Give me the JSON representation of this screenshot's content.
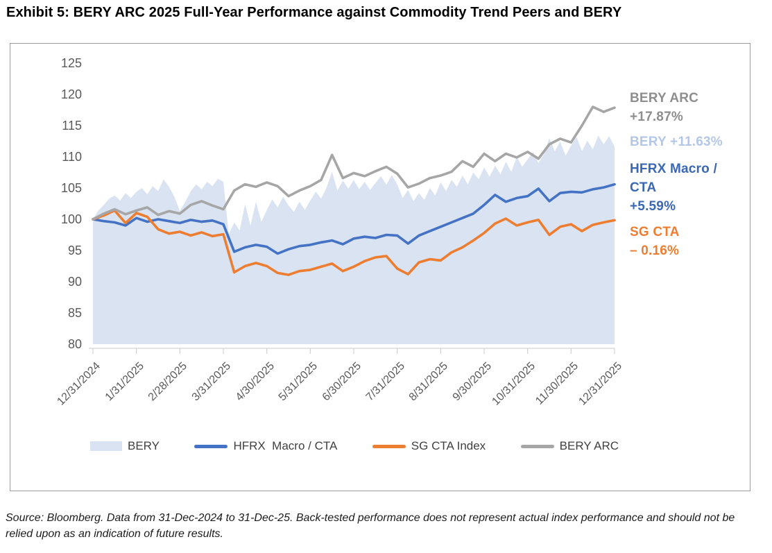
{
  "page": {
    "title": "Exhibit 5: BERY ARC 2025 Full-Year Performance against Commodity Trend Peers and BERY",
    "footnote": "Source: Bloomberg. Data from 31-Dec-2024 to 31-Dec-25. Back-tested performance does not represent actual index performance and should not be relied upon as an indication of future results."
  },
  "colors": {
    "bery_area": "#dae3f1",
    "hfrx_blue": "#4472c4",
    "sg_orange": "#ed7d31",
    "arc_gray": "#a6a6a6",
    "bery_annotation_blue": "#b4c7e7",
    "hfrx_annotation_blue": "#3a68b5",
    "arc_annotation_gray": "#8e8e8e",
    "axis_text": "#595959",
    "legend_text": "#404040"
  },
  "chart_data": {
    "type": "line",
    "title": "",
    "xlabel": "",
    "ylabel": "",
    "x_unit": "months since 12/31/2024",
    "x_range": [
      0,
      12
    ],
    "ylim": [
      80,
      125
    ],
    "grid": false,
    "legend_position": "bottom",
    "y_ticks": [
      125,
      120,
      115,
      110,
      105,
      100,
      95,
      90,
      85,
      80
    ],
    "x_tick_labels": [
      "12/31/2024",
      "1/31/2025",
      "2/28/2025",
      "3/31/2025",
      "4/30/2025",
      "5/31/2025",
      "6/30/2025",
      "7/31/2025",
      "8/31/2025",
      "9/30/2025",
      "10/31/2025",
      "11/30/2025",
      "12/31/2025"
    ],
    "series": [
      {
        "name": "BERY",
        "type": "area",
        "color": "#dae3f1",
        "final_return_pct": 11.63,
        "x_step": 0.125,
        "values": [
          100,
          101.4,
          102.3,
          103.3,
          103.8,
          103.0,
          104.2,
          103.4,
          104.4,
          105.0,
          104.0,
          105.3,
          104.5,
          106.4,
          105.2,
          103.6,
          101.3,
          102.8,
          104.5,
          105.6,
          104.8,
          106.0,
          105.3,
          106.5,
          106.0,
          97.6,
          99.5,
          98.2,
          102.4,
          99.0,
          102.8,
          99.6,
          101.5,
          103.2,
          101.9,
          103.6,
          102.2,
          101.2,
          102.8,
          101.5,
          103.0,
          104.4,
          103.3,
          105.1,
          107.6,
          104.6,
          106.2,
          104.9,
          106.3,
          104.8,
          106.0,
          104.7,
          105.8,
          106.9,
          105.5,
          107.1,
          105.6,
          103.4,
          104.7,
          102.9,
          104.2,
          103.1,
          105.0,
          103.8,
          105.9,
          104.5,
          106.3,
          105.2,
          107.0,
          105.6,
          107.5,
          106.4,
          108.3,
          106.8,
          108.6,
          107.2,
          109.2,
          107.6,
          110.0,
          108.4,
          109.6,
          110.8,
          109.0,
          110.4,
          113.0,
          110.9,
          112.4,
          110.2,
          111.8,
          113.2,
          110.9,
          112.6,
          111.2,
          113.4,
          112.0,
          113.3,
          111.63
        ]
      },
      {
        "name": "HFRX  Macro / CTA",
        "type": "line",
        "color": "#4472c4",
        "final_return_pct": 5.59,
        "x_step": 0.25,
        "values": [
          100,
          99.7,
          99.5,
          99.0,
          100.2,
          99.6,
          100.0,
          99.7,
          99.4,
          99.9,
          99.6,
          99.8,
          99.2,
          94.8,
          95.5,
          95.9,
          95.6,
          94.5,
          95.2,
          95.7,
          95.9,
          96.3,
          96.6,
          96.0,
          96.9,
          97.2,
          97.0,
          97.5,
          97.4,
          96.1,
          97.4,
          98.1,
          98.8,
          99.5,
          100.2,
          100.9,
          102.3,
          103.9,
          102.8,
          103.4,
          103.7,
          104.9,
          102.9,
          104.2,
          104.4,
          104.3,
          104.8,
          105.1,
          105.59
        ]
      },
      {
        "name": "SG CTA Index",
        "type": "line",
        "color": "#ed7d31",
        "final_return_pct": -0.16,
        "x_step": 0.25,
        "values": [
          100,
          100.6,
          101.4,
          99.4,
          101.0,
          100.4,
          98.4,
          97.7,
          98.0,
          97.4,
          97.9,
          97.3,
          97.6,
          91.5,
          92.5,
          93.0,
          92.5,
          91.4,
          91.1,
          91.7,
          91.9,
          92.4,
          92.9,
          91.7,
          92.4,
          93.3,
          93.9,
          94.1,
          92.1,
          91.2,
          93.1,
          93.6,
          93.4,
          94.7,
          95.5,
          96.6,
          97.8,
          99.3,
          100.1,
          99.0,
          99.5,
          99.9,
          97.5,
          98.8,
          99.2,
          98.1,
          99.1,
          99.5,
          99.84
        ]
      },
      {
        "name": "BERY ARC",
        "type": "line",
        "color": "#a6a6a6",
        "final_return_pct": 17.87,
        "x_step": 0.25,
        "values": [
          100,
          100.9,
          101.6,
          100.8,
          101.4,
          101.9,
          100.7,
          101.3,
          100.9,
          102.3,
          102.9,
          102.2,
          101.6,
          104.6,
          105.6,
          105.2,
          105.9,
          105.3,
          103.7,
          104.6,
          105.3,
          106.3,
          110.3,
          106.6,
          107.4,
          106.9,
          107.7,
          108.4,
          107.3,
          105.1,
          105.7,
          106.6,
          107.0,
          107.6,
          109.3,
          108.4,
          110.5,
          109.3,
          110.5,
          109.9,
          110.8,
          109.7,
          112.0,
          112.9,
          112.3,
          115.0,
          118.0,
          117.2,
          117.87
        ]
      }
    ],
    "annotations": [
      {
        "id": "bery-arc",
        "color": "#8e8e8e",
        "lines": [
          "BERY ARC",
          "+17.87%"
        ]
      },
      {
        "id": "bery",
        "color": "#b4c7e7",
        "lines": [
          "BERY +11.63%"
        ]
      },
      {
        "id": "hfrx",
        "color": "#3a68b5",
        "lines": [
          "HFRX Macro /",
          "CTA",
          "+5.59%"
        ]
      },
      {
        "id": "sg-cta",
        "color": "#ed7d31",
        "lines": [
          "SG CTA",
          "– 0.16%"
        ]
      }
    ]
  }
}
